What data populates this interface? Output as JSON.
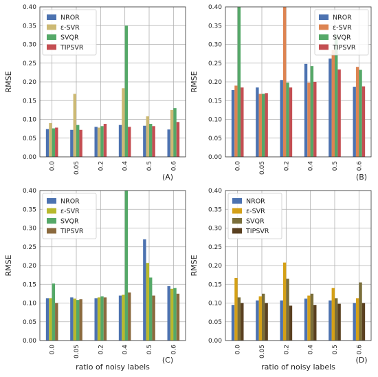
{
  "chart_data": [
    {
      "type": "bar",
      "panel_label": "(A)",
      "categories": [
        "0.0",
        "0.05",
        "0.2",
        "0.4",
        "0.5",
        "0.6"
      ],
      "ylabel": "RMSE",
      "xlabel": "",
      "ylim": [
        0,
        0.4
      ],
      "yticks": [
        "0.00",
        "0.05",
        "0.10",
        "0.15",
        "0.20",
        "0.25",
        "0.30",
        "0.35",
        "0.40"
      ],
      "grid": true,
      "legend_position": "top-left",
      "series": [
        {
          "name": "NROR",
          "color": "#4c72b0",
          "values": [
            0.074,
            0.072,
            0.08,
            0.085,
            0.083,
            0.073
          ]
        },
        {
          "name": "ε-SVR",
          "color": "#ccb974",
          "values": [
            0.09,
            0.168,
            0.078,
            0.183,
            0.108,
            0.125
          ]
        },
        {
          "name": "SVQR",
          "color": "#55a868",
          "values": [
            0.076,
            0.085,
            0.082,
            0.35,
            0.088,
            0.13
          ]
        },
        {
          "name": "TIPSVR",
          "color": "#c44e52",
          "values": [
            0.078,
            0.072,
            0.088,
            0.08,
            0.082,
            0.093
          ]
        }
      ]
    },
    {
      "type": "bar",
      "panel_label": "(B)",
      "categories": [
        "0.0",
        "0.05",
        "0.2",
        "0.4",
        "0.5",
        "0.6"
      ],
      "ylabel": "RMSE",
      "xlabel": "",
      "ylim": [
        0,
        0.4
      ],
      "yticks": [
        "0.00",
        "0.05",
        "0.10",
        "0.15",
        "0.20",
        "0.25",
        "0.30",
        "0.35",
        "0.40"
      ],
      "grid": true,
      "legend_position": "top-right",
      "series": [
        {
          "name": "NROR",
          "color": "#4c72b0",
          "values": [
            0.178,
            0.185,
            0.205,
            0.248,
            0.262,
            0.187
          ]
        },
        {
          "name": "ε-SVR",
          "color": "#dd8452",
          "values": [
            0.19,
            0.168,
            0.4,
            0.198,
            0.285,
            0.24
          ]
        },
        {
          "name": "SVQR",
          "color": "#55a868",
          "values": [
            0.4,
            0.168,
            0.198,
            0.242,
            0.325,
            0.232
          ]
        },
        {
          "name": "TIPSVR",
          "color": "#c44e52",
          "values": [
            0.185,
            0.17,
            0.185,
            0.2,
            0.233,
            0.188
          ]
        }
      ]
    },
    {
      "type": "bar",
      "panel_label": "(C)",
      "categories": [
        "0.0",
        "0.05",
        "0.2",
        "0.4",
        "0.5",
        "0.6"
      ],
      "ylabel": "RMSE",
      "xlabel": "ratio of noisy labels",
      "ylim": [
        0,
        0.4
      ],
      "yticks": [
        "0.00",
        "0.05",
        "0.10",
        "0.15",
        "0.20",
        "0.25",
        "0.30",
        "0.35",
        "0.40"
      ],
      "grid": true,
      "legend_position": "top-left",
      "series": [
        {
          "name": "NROR",
          "color": "#4c72b0",
          "values": [
            0.113,
            0.115,
            0.113,
            0.12,
            0.27,
            0.145
          ]
        },
        {
          "name": "ε-SVR",
          "color": "#b8b92d",
          "values": [
            0.113,
            0.112,
            0.115,
            0.122,
            0.207,
            0.138
          ]
        },
        {
          "name": "SVQR",
          "color": "#55a868",
          "values": [
            0.152,
            0.108,
            0.118,
            0.4,
            0.168,
            0.14
          ]
        },
        {
          "name": "TIPSVR",
          "color": "#8b6a3e",
          "values": [
            0.1,
            0.11,
            0.115,
            0.128,
            0.12,
            0.125
          ]
        }
      ]
    },
    {
      "type": "bar",
      "panel_label": "(D)",
      "categories": [
        "0.0",
        "0.05",
        "0.2",
        "0.4",
        "0.5",
        "0.6"
      ],
      "ylabel": "RMSE",
      "xlabel": "ratio of noisy labels",
      "ylim": [
        0,
        0.4
      ],
      "yticks": [
        "0.00",
        "0.05",
        "0.10",
        "0.15",
        "0.20",
        "0.25",
        "0.30",
        "0.35",
        "0.40"
      ],
      "grid": true,
      "legend_position": "top-left",
      "series": [
        {
          "name": "NROR",
          "color": "#4c72b0",
          "values": [
            0.095,
            0.107,
            0.107,
            0.112,
            0.107,
            0.1
          ]
        },
        {
          "name": "ε-SVR",
          "color": "#d4a017",
          "values": [
            0.167,
            0.118,
            0.208,
            0.12,
            0.14,
            0.113
          ]
        },
        {
          "name": "SVQR",
          "color": "#7a6e3a",
          "values": [
            0.115,
            0.125,
            0.165,
            0.125,
            0.113,
            0.155
          ]
        },
        {
          "name": "TIPSVR",
          "color": "#5a4020",
          "values": [
            0.1,
            0.1,
            0.093,
            0.095,
            0.098,
            0.1
          ]
        }
      ]
    }
  ]
}
